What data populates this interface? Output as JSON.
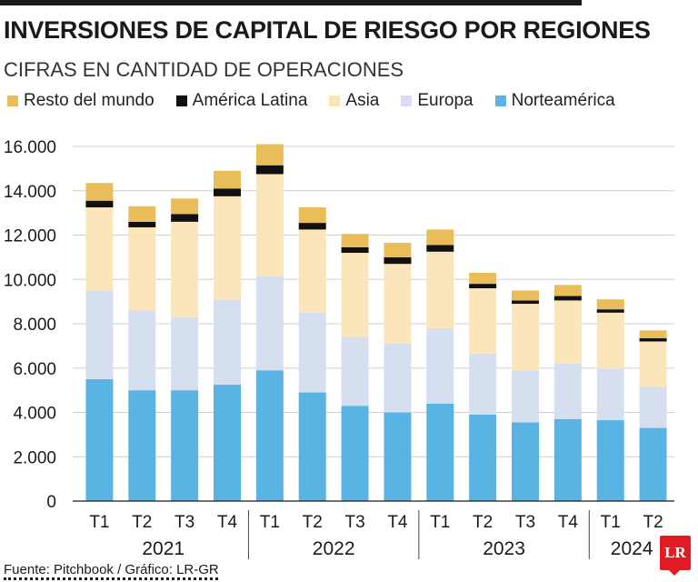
{
  "title": "INVERSIONES DE CAPITAL DE RIESGO POR REGIONES",
  "subtitle": "CIFRAS EN CANTIDAD DE OPERACIONES",
  "source": "Fuente: Pitchbook / Gráfico: LR-GR",
  "logo_text": "LR",
  "colors": {
    "resto": "#e8bd5a",
    "latam": "#111111",
    "asia": "#fbe6bc",
    "europa": "#d5dff0",
    "norteamerica": "#5ab4e3"
  },
  "chart_data": {
    "type": "bar",
    "stacked": true,
    "categories": [
      "T1",
      "T2",
      "T3",
      "T4",
      "T1",
      "T2",
      "T3",
      "T4",
      "T1",
      "T2",
      "T3",
      "T4",
      "T1",
      "T2"
    ],
    "groups": [
      {
        "label": "2021",
        "count": 4
      },
      {
        "label": "2022",
        "count": 4
      },
      {
        "label": "2023",
        "count": 4
      },
      {
        "label": "2024",
        "count": 2
      }
    ],
    "series": [
      {
        "name": "Norteamérica",
        "key": "norteamerica",
        "values": [
          5500,
          5000,
          5000,
          5250,
          5900,
          4900,
          4300,
          4000,
          4400,
          3900,
          3550,
          3700,
          3650,
          3300
        ]
      },
      {
        "name": "Europa",
        "key": "europa",
        "values": [
          4000,
          3600,
          3300,
          3850,
          4250,
          3600,
          3100,
          3100,
          3400,
          2750,
          2350,
          2500,
          2300,
          1850
        ]
      },
      {
        "name": "Asia",
        "key": "asia",
        "values": [
          3750,
          3750,
          4300,
          4650,
          4600,
          3750,
          3800,
          3600,
          3450,
          2950,
          3000,
          2850,
          2550,
          2050
        ]
      },
      {
        "name": "América Latina",
        "key": "latam",
        "values": [
          300,
          250,
          350,
          350,
          400,
          300,
          250,
          300,
          300,
          200,
          150,
          200,
          150,
          150
        ]
      },
      {
        "name": "Resto del mundo",
        "key": "resto",
        "values": [
          800,
          700,
          700,
          800,
          950,
          700,
          600,
          650,
          700,
          500,
          450,
          500,
          450,
          350
        ]
      }
    ],
    "legend_order": [
      "resto",
      "latam",
      "asia",
      "europa",
      "norteamerica"
    ],
    "ylim": [
      0,
      16000
    ],
    "yticks": [
      "0",
      "2.000",
      "4.000",
      "6.000",
      "8.000",
      "10.000",
      "12.000",
      "14.000",
      "16.000"
    ],
    "ytick_values": [
      0,
      2000,
      4000,
      6000,
      8000,
      10000,
      12000,
      14000,
      16000
    ],
    "grid": true,
    "legend_position": "top"
  }
}
